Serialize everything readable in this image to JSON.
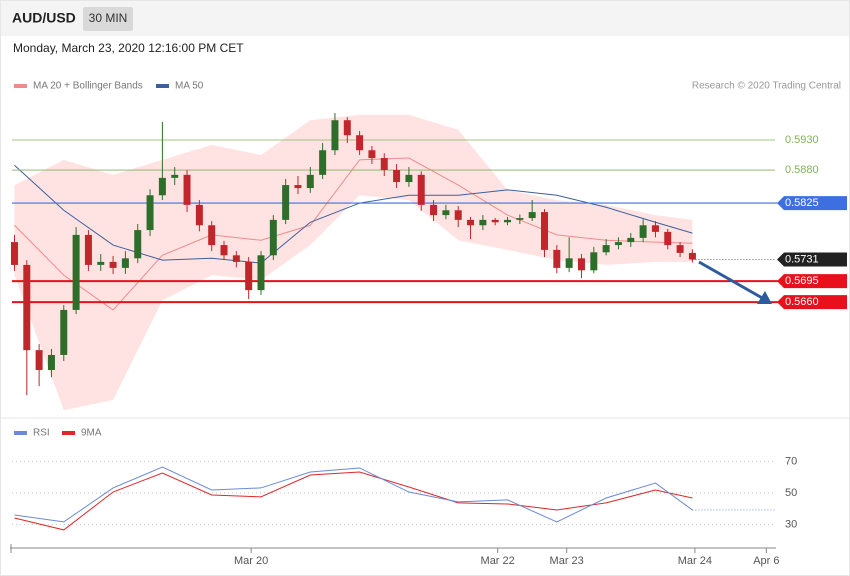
{
  "header": {
    "symbol": "AUD/USD",
    "interval": "30 MIN",
    "datetime": "Monday, March 23, 2020 12:16:00 PM CET"
  },
  "chart_data": [
    {
      "type": "candlestick",
      "source": "Research © 2020 Trading Central",
      "up_color": "#2f6e2a",
      "down_color": "#c0262b",
      "xlim": [
        -0.2,
        61.7
      ],
      "ylim": [
        0.5472,
        0.6005
      ],
      "x": [
        0,
        1,
        2,
        3,
        4,
        5,
        6,
        7,
        8,
        9,
        10,
        11,
        12,
        13,
        14,
        15,
        16,
        17,
        18,
        19,
        20,
        21,
        22,
        23,
        24,
        25,
        26,
        27,
        28,
        29,
        30,
        31,
        32,
        33,
        34,
        35,
        36,
        37,
        38,
        39,
        40,
        41,
        42,
        43,
        44,
        45,
        46,
        47,
        48,
        49,
        50,
        51,
        52,
        53,
        54,
        55
      ],
      "open": [
        0.576,
        0.5722,
        0.558,
        0.5547,
        0.5572,
        0.5647,
        0.5772,
        0.5722,
        0.5727,
        0.5717,
        0.5733,
        0.578,
        0.5838,
        0.5867,
        0.5872,
        0.5822,
        0.5788,
        0.5755,
        0.5738,
        0.5727,
        0.568,
        0.5738,
        0.5797,
        0.5855,
        0.585,
        0.5872,
        0.5913,
        0.5963,
        0.5938,
        0.5913,
        0.59,
        0.588,
        0.586,
        0.5872,
        0.5822,
        0.5805,
        0.5813,
        0.5797,
        0.5788,
        0.5797,
        0.5793,
        0.5797,
        0.58,
        0.581,
        0.5747,
        0.5717,
        0.5733,
        0.5713,
        0.5743,
        0.5755,
        0.576,
        0.5767,
        0.5788,
        0.5777,
        0.5755,
        0.5742
      ],
      "high": [
        0.5772,
        0.573,
        0.559,
        0.5582,
        0.5655,
        0.5785,
        0.578,
        0.574,
        0.5737,
        0.5745,
        0.579,
        0.5848,
        0.596,
        0.5885,
        0.588,
        0.583,
        0.5795,
        0.5762,
        0.5745,
        0.5735,
        0.5745,
        0.5805,
        0.5865,
        0.587,
        0.5885,
        0.5925,
        0.5975,
        0.5968,
        0.5945,
        0.592,
        0.5908,
        0.589,
        0.5885,
        0.5878,
        0.583,
        0.5822,
        0.582,
        0.5802,
        0.5805,
        0.58,
        0.5802,
        0.5806,
        0.583,
        0.5815,
        0.5755,
        0.5768,
        0.574,
        0.5752,
        0.5765,
        0.5768,
        0.5775,
        0.5798,
        0.5795,
        0.5782,
        0.576,
        0.5748
      ],
      "low": [
        0.5712,
        0.5505,
        0.552,
        0.5535,
        0.5562,
        0.564,
        0.5712,
        0.5712,
        0.5707,
        0.5707,
        0.5725,
        0.577,
        0.583,
        0.5855,
        0.581,
        0.5778,
        0.5745,
        0.573,
        0.5718,
        0.5665,
        0.5672,
        0.573,
        0.579,
        0.584,
        0.5842,
        0.5865,
        0.5905,
        0.5925,
        0.5905,
        0.589,
        0.587,
        0.585,
        0.5852,
        0.5812,
        0.5795,
        0.5798,
        0.5785,
        0.5765,
        0.578,
        0.5788,
        0.5788,
        0.579,
        0.5795,
        0.5735,
        0.5708,
        0.571,
        0.57,
        0.5708,
        0.5738,
        0.5748,
        0.5752,
        0.576,
        0.5768,
        0.5748,
        0.5735,
        0.5726
      ],
      "close": [
        0.5722,
        0.558,
        0.5547,
        0.5572,
        0.5647,
        0.5772,
        0.5722,
        0.5727,
        0.5717,
        0.5733,
        0.578,
        0.5838,
        0.5867,
        0.5872,
        0.5822,
        0.5788,
        0.5755,
        0.5738,
        0.5727,
        0.568,
        0.5738,
        0.5797,
        0.5855,
        0.585,
        0.5872,
        0.5913,
        0.5963,
        0.5938,
        0.5913,
        0.59,
        0.588,
        0.586,
        0.5872,
        0.5822,
        0.5805,
        0.5813,
        0.5797,
        0.5788,
        0.5797,
        0.5793,
        0.5797,
        0.58,
        0.581,
        0.5747,
        0.5717,
        0.5733,
        0.5713,
        0.5743,
        0.5755,
        0.576,
        0.5767,
        0.5788,
        0.5777,
        0.5755,
        0.5742,
        0.5731
      ],
      "series": [
        {
          "name": "MA 20 + Bollinger Bands",
          "color": "#f08a8a",
          "band_color": "#ffe3e3",
          "x": [
            0,
            4,
            8,
            12,
            16,
            20,
            24,
            28,
            32,
            36,
            40,
            44,
            48,
            52,
            55
          ],
          "values": [
            0.5788,
            0.5705,
            0.5647,
            0.5738,
            0.5772,
            0.5763,
            0.5788,
            0.5897,
            0.59,
            0.5855,
            0.5805,
            0.5772,
            0.5763,
            0.576,
            0.5758
          ],
          "upper": [
            0.5855,
            0.5897,
            0.5872,
            0.5897,
            0.5922,
            0.5905,
            0.5963,
            0.5972,
            0.5972,
            0.5947,
            0.5847,
            0.583,
            0.5822,
            0.5805,
            0.5797
          ],
          "lower": [
            0.5705,
            0.548,
            0.5497,
            0.5663,
            0.5705,
            0.5697,
            0.5755,
            0.5838,
            0.583,
            0.5763,
            0.5747,
            0.573,
            0.5722,
            0.5727,
            0.5727
          ]
        },
        {
          "name": "MA 50",
          "color": "#3d5f9c",
          "x": [
            0,
            4,
            8,
            12,
            16,
            20,
            24,
            28,
            32,
            36,
            40,
            44,
            48,
            52,
            55
          ],
          "values": [
            0.5888,
            0.5813,
            0.5755,
            0.573,
            0.5733,
            0.5725,
            0.5793,
            0.5825,
            0.5838,
            0.5838,
            0.5847,
            0.5838,
            0.5818,
            0.5793,
            0.5775
          ]
        }
      ],
      "levels": [
        {
          "value": 0.593,
          "label": "0.5930",
          "color": "#7fb35a",
          "boxed": false,
          "line_width": 0.8
        },
        {
          "value": 0.588,
          "label": "0.5880",
          "color": "#7fb35a",
          "boxed": false,
          "line_width": 0.8
        },
        {
          "value": 0.5825,
          "label": "0.5825",
          "color": "#3d6fe0",
          "boxed": true,
          "line_width": 1.2
        },
        {
          "value": 0.5695,
          "label": "0.5695",
          "color": "#e8101a",
          "boxed": true,
          "line_width": 2
        },
        {
          "value": 0.566,
          "label": "0.5660",
          "color": "#e8101a",
          "boxed": true,
          "line_width": 2
        }
      ],
      "last": {
        "value": 0.5731,
        "label": "0.5731",
        "color": "#222222"
      }
    },
    {
      "type": "line",
      "xlim": [
        -0.2,
        61.7
      ],
      "ylim": [
        15,
        80.5
      ],
      "yticks": [
        30,
        50,
        70
      ],
      "grid": true,
      "xticks": [
        {
          "value": 19.2,
          "label": "Mar 20"
        },
        {
          "value": 39.2,
          "label": "Mar 22"
        },
        {
          "value": 44.8,
          "label": "Mar 23"
        },
        {
          "value": 55.2,
          "label": "Mar 24"
        },
        {
          "value": 61.0,
          "label": "Apr 6"
        }
      ],
      "series": [
        {
          "name": "RSI",
          "color": "#6a8ad6",
          "x": [
            0,
            4,
            8,
            12,
            16,
            20,
            24,
            28,
            32,
            36,
            40,
            44,
            48,
            52,
            55
          ],
          "values": [
            36.0,
            31.6,
            53.2,
            66.5,
            51.9,
            53.2,
            63.3,
            65.9,
            50.6,
            44.3,
            45.6,
            31.6,
            46.8,
            56.3,
            39.2
          ]
        },
        {
          "name": "9MA",
          "color": "#e0262b",
          "x": [
            0,
            4,
            8,
            12,
            16,
            20,
            24,
            28,
            32,
            36,
            40,
            44,
            48,
            52,
            55
          ],
          "values": [
            34.1,
            26.5,
            50.6,
            62.7,
            48.7,
            47.5,
            61.4,
            63.3,
            53.8,
            43.7,
            43.0,
            39.2,
            43.7,
            51.9,
            46.8
          ]
        }
      ]
    }
  ]
}
